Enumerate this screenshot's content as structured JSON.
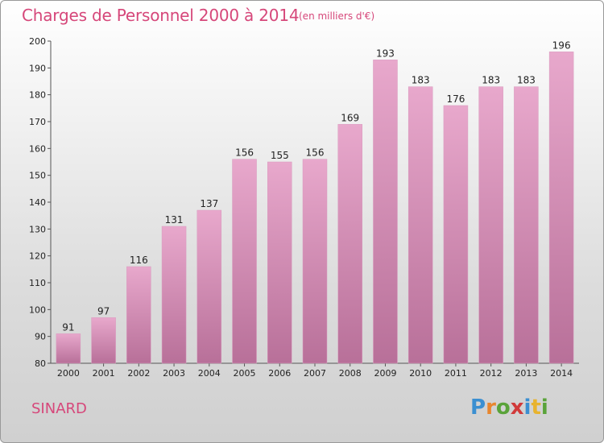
{
  "chart_data": {
    "type": "bar",
    "title": "Charges de Personnel 2000 à 2014",
    "subtitle": "(en milliers d'€)",
    "categories": [
      "2000",
      "2001",
      "2002",
      "2003",
      "2004",
      "2005",
      "2006",
      "2007",
      "2008",
      "2009",
      "2010",
      "2011",
      "2012",
      "2013",
      "2014"
    ],
    "values": [
      91,
      97,
      116,
      131,
      137,
      156,
      155,
      156,
      169,
      193,
      183,
      176,
      183,
      183,
      196
    ],
    "ylim": [
      80,
      200
    ],
    "yticks": [
      80,
      90,
      100,
      110,
      120,
      130,
      140,
      150,
      160,
      170,
      180,
      190,
      200
    ],
    "xlabel": "",
    "ylabel": "",
    "grid": false,
    "colors": {
      "bar": "#e4a2c8",
      "bar_dark": "#c97aa6",
      "text": "#d6477a"
    }
  },
  "footer": {
    "city": "SINARD",
    "logo_letters": [
      {
        "char": "P",
        "color": "#3b8fd1"
      },
      {
        "char": "r",
        "color": "#e8862e"
      },
      {
        "char": "o",
        "color": "#5aa33a"
      },
      {
        "char": "x",
        "color": "#d13a3a"
      },
      {
        "char": "i",
        "color": "#3b8fd1"
      },
      {
        "char": "t",
        "color": "#e8b32e"
      },
      {
        "char": "i",
        "color": "#5aa33a"
      }
    ]
  }
}
